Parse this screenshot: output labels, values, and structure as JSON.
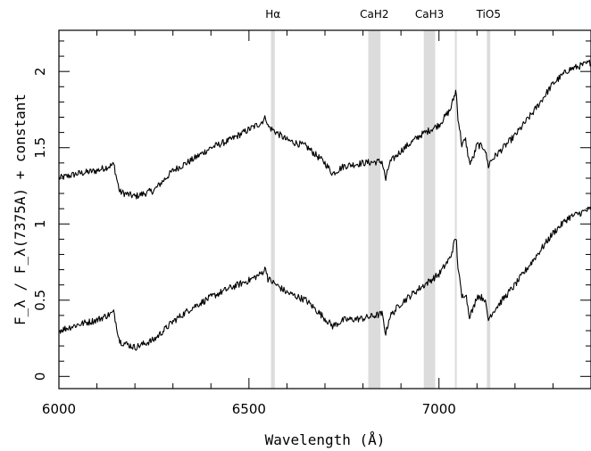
{
  "chart_data": {
    "type": "line",
    "xlabel": "Wavelength (Å)",
    "ylabel": "F_λ / F_λ(7375A) + constant",
    "xlim": [
      6000,
      7400
    ],
    "ylim": [
      -0.08,
      2.27
    ],
    "x_ticks": [
      6000,
      6500,
      7000
    ],
    "x_tick_labels": [
      "6000",
      "6500",
      "7000"
    ],
    "y_ticks": [
      0,
      0.5,
      1,
      1.5,
      2
    ],
    "y_tick_labels": [
      "0",
      "0.5",
      "1",
      "1.5",
      "2"
    ],
    "grid": false,
    "bands": [
      {
        "label": "Hα",
        "x0": 6558,
        "x1": 6568
      },
      {
        "label": "CaH2",
        "x0": 6814,
        "x1": 6846
      },
      {
        "label": "CaH3",
        "x0": 6960,
        "x1": 6990
      },
      {
        "label": "",
        "x0": 7042,
        "x1": 7046
      },
      {
        "label": "TiO5",
        "x0": 7126,
        "x1": 7135
      }
    ],
    "series": [
      {
        "x": [
          6000,
          6050,
          6100,
          6145,
          6150,
          6160,
          6200,
          6250,
          6300,
          6350,
          6400,
          6450,
          6500,
          6530,
          6545,
          6550,
          6600,
          6650,
          6700,
          6720,
          6750,
          6800,
          6850,
          6860,
          6870,
          6900,
          6950,
          7000,
          7030,
          7045,
          7050,
          7060,
          7070,
          7080,
          7090,
          7100,
          7120,
          7130,
          7135,
          7150,
          7200,
          7250,
          7300,
          7340,
          7400
        ],
        "y": [
          1.3,
          1.33,
          1.35,
          1.39,
          1.32,
          1.21,
          1.18,
          1.22,
          1.35,
          1.42,
          1.5,
          1.55,
          1.62,
          1.66,
          1.7,
          1.64,
          1.55,
          1.51,
          1.4,
          1.33,
          1.38,
          1.4,
          1.41,
          1.29,
          1.4,
          1.48,
          1.58,
          1.65,
          1.75,
          1.88,
          1.7,
          1.52,
          1.55,
          1.4,
          1.43,
          1.52,
          1.5,
          1.38,
          1.41,
          1.45,
          1.58,
          1.74,
          1.92,
          2.01,
          2.06
        ]
      },
      {
        "x": [
          6000,
          6050,
          6100,
          6145,
          6150,
          6160,
          6200,
          6250,
          6300,
          6350,
          6400,
          6450,
          6500,
          6530,
          6545,
          6550,
          6600,
          6650,
          6700,
          6720,
          6750,
          6800,
          6850,
          6860,
          6870,
          6900,
          6950,
          7000,
          7030,
          7045,
          7050,
          7060,
          7070,
          7080,
          7090,
          7100,
          7120,
          7130,
          7135,
          7150,
          7200,
          7250,
          7300,
          7340,
          7400
        ],
        "y": [
          0.3,
          0.34,
          0.37,
          0.42,
          0.35,
          0.23,
          0.19,
          0.24,
          0.36,
          0.45,
          0.52,
          0.58,
          0.63,
          0.67,
          0.71,
          0.64,
          0.55,
          0.5,
          0.38,
          0.33,
          0.37,
          0.38,
          0.41,
          0.28,
          0.39,
          0.48,
          0.58,
          0.67,
          0.78,
          0.92,
          0.72,
          0.52,
          0.55,
          0.4,
          0.44,
          0.53,
          0.51,
          0.37,
          0.4,
          0.45,
          0.6,
          0.77,
          0.94,
          1.04,
          1.1
        ]
      }
    ]
  }
}
